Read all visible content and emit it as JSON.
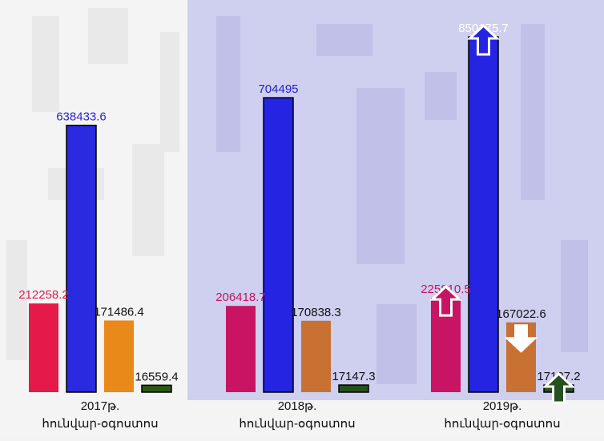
{
  "chart_data": {
    "type": "bar",
    "groups": [
      {
        "label_line1": "2017թ.",
        "label_line2": "հունվար-օգոստոս",
        "values": [
          212258.2,
          638433.6,
          171486.4,
          16559.4
        ],
        "value_labels": [
          "212258.2",
          "638433.6",
          "171486.4",
          "16559.4"
        ],
        "colors": [
          "#e6194b",
          "#2a2ae0",
          "#e8891a",
          "#2b5a10"
        ],
        "label_colors": [
          "#e61a4a",
          "#2626d9",
          "#111111",
          "#111111"
        ],
        "arrows": [
          "none",
          "none",
          "none",
          "none"
        ]
      },
      {
        "label_line1": "2018թ.",
        "label_line2": "հունվար-օգոստոս",
        "values": [
          206418.7,
          704495,
          170838.3,
          17147.3
        ],
        "value_labels": [
          "206418.7",
          "704495",
          "170838.3",
          "17147.3"
        ],
        "colors": [
          "#c81462",
          "#2424e2",
          "#c97033",
          "#27501f"
        ],
        "label_colors": [
          "#c8145a",
          "#2323cc",
          "#111111",
          "#111111"
        ],
        "arrows": [
          "none",
          "none",
          "none",
          "none"
        ]
      },
      {
        "label_line1": "2019թ.",
        "label_line2": "հունվար-օգոստոս",
        "values": [
          225810.5,
          850175.7,
          167022.6,
          17127.2
        ],
        "value_labels": [
          "225810.5",
          "850175.7",
          "167022.6",
          "17127.2"
        ],
        "colors": [
          "#c81462",
          "#2424e2",
          "#c97033",
          "#27501f"
        ],
        "label_colors": [
          "#c8145a",
          "#ffffff",
          "#111111",
          "#111111"
        ],
        "arrows": [
          "up",
          "up",
          "down",
          "up"
        ]
      }
    ],
    "ylim": [
      0,
      900000
    ],
    "highlight_background": "#cfcff0"
  }
}
